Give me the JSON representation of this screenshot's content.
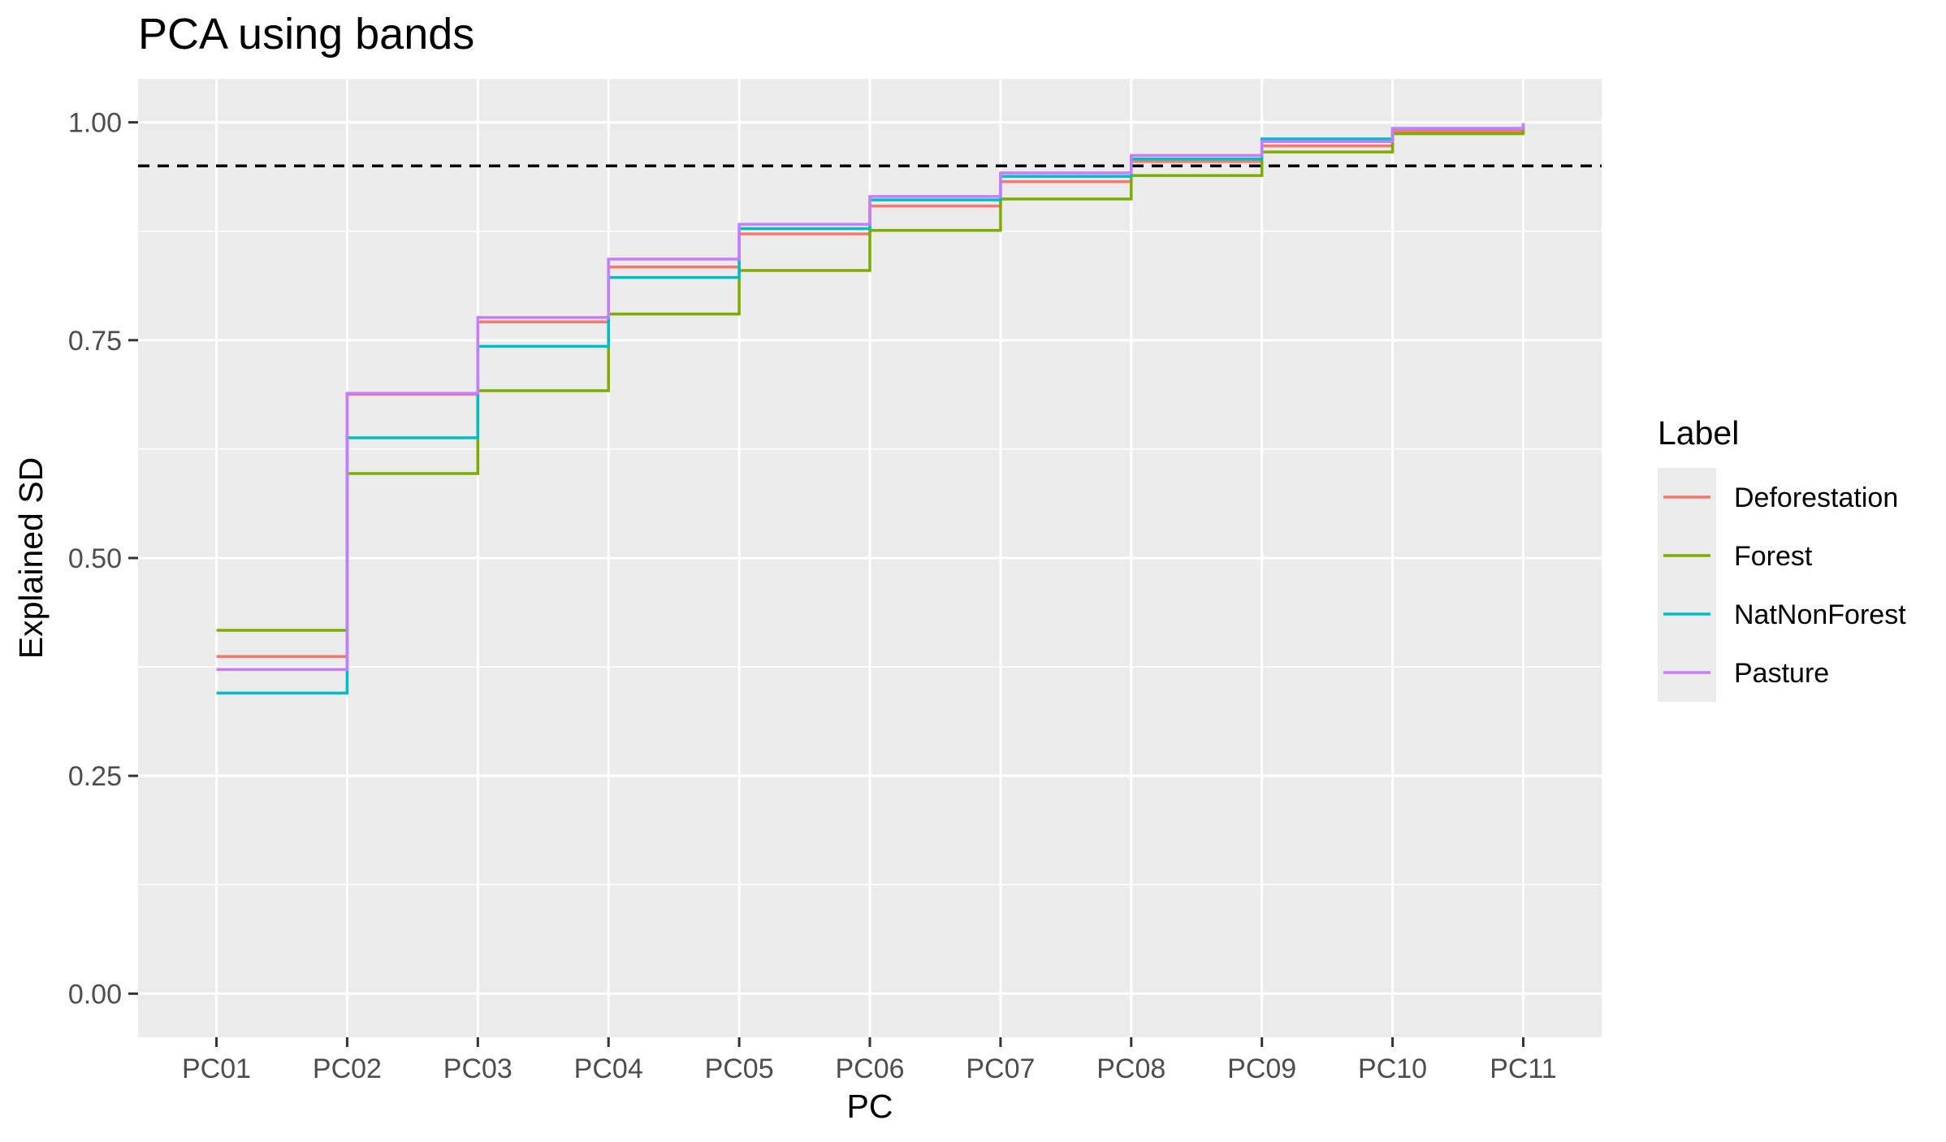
{
  "chart_data": {
    "type": "line",
    "step": true,
    "title": "PCA using bands",
    "xlabel": "PC",
    "ylabel": "Explained SD",
    "categories": [
      "PC01",
      "PC02",
      "PC03",
      "PC04",
      "PC05",
      "PC06",
      "PC07",
      "PC08",
      "PC09",
      "PC10",
      "PC11"
    ],
    "ylim": [
      -0.05,
      1.05
    ],
    "yticks": [
      0.0,
      0.25,
      0.5,
      0.75,
      1.0
    ],
    "ytick_labels": [
      "0.00",
      "0.25",
      "0.50",
      "0.75",
      "1.00"
    ],
    "grid": true,
    "background": "#ebebeb",
    "reference_line": {
      "y": 0.95,
      "style": "dashed",
      "color": "#000000"
    },
    "legend": {
      "title": "Label",
      "position": "right"
    },
    "series": [
      {
        "name": "Deforestation",
        "color": "#f8766d",
        "values": [
          0.387,
          0.688,
          0.771,
          0.834,
          0.872,
          0.904,
          0.932,
          0.955,
          0.973,
          0.99,
          0.998
        ]
      },
      {
        "name": "Forest",
        "color": "#7cae00",
        "values": [
          0.417,
          0.597,
          0.692,
          0.78,
          0.83,
          0.876,
          0.912,
          0.939,
          0.966,
          0.987,
          0.996
        ]
      },
      {
        "name": "NatNonForest",
        "color": "#00bfc4",
        "values": [
          0.345,
          0.638,
          0.743,
          0.822,
          0.878,
          0.911,
          0.938,
          0.958,
          0.981,
          0.993,
          0.999
        ]
      },
      {
        "name": "Pasture",
        "color": "#c77cff",
        "values": [
          0.372,
          0.689,
          0.776,
          0.843,
          0.883,
          0.915,
          0.942,
          0.962,
          0.978,
          0.993,
          0.999
        ]
      }
    ]
  }
}
